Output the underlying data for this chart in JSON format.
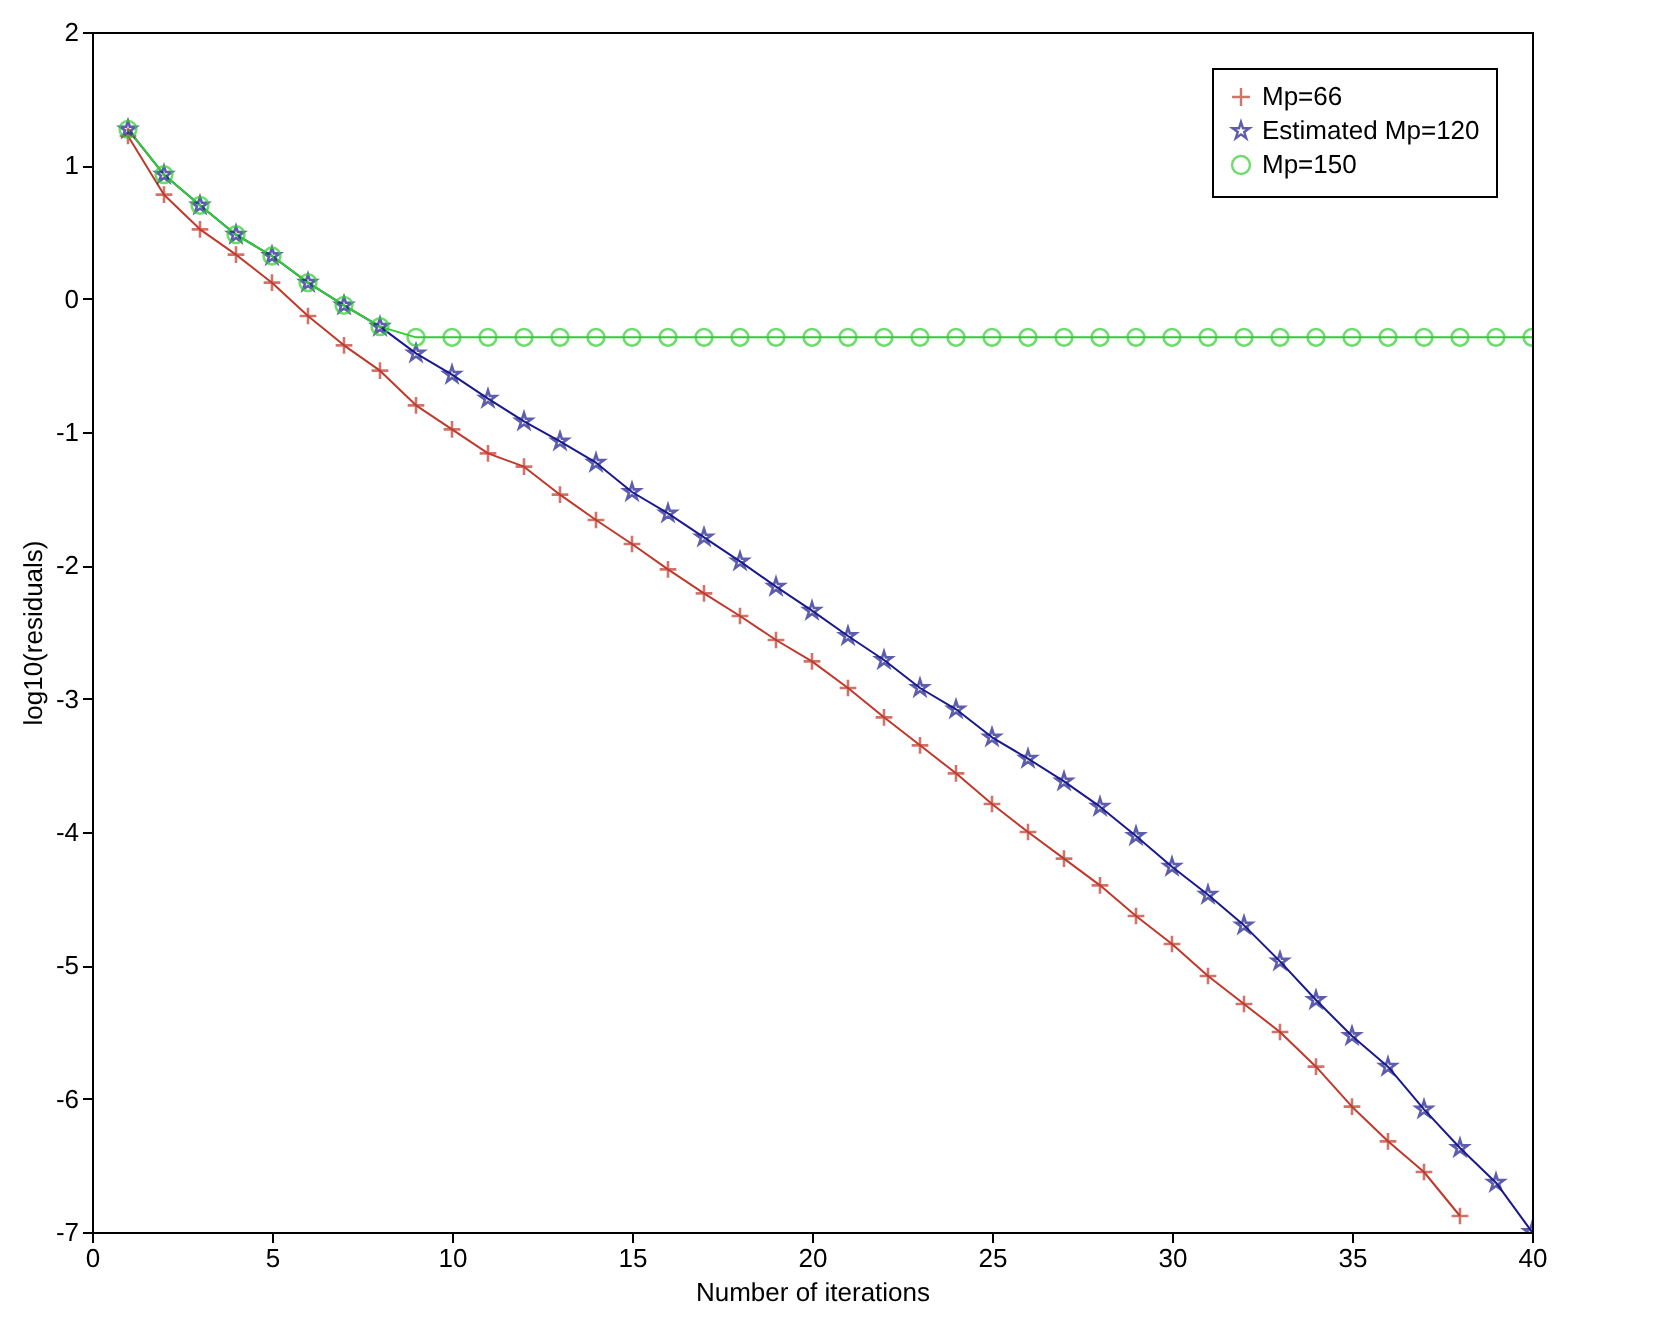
{
  "chart_data": {
    "type": "line",
    "xlabel": "Number of iterations",
    "ylabel": "log10(residuals)",
    "x": [
      1,
      2,
      3,
      4,
      5,
      6,
      7,
      8,
      9,
      10,
      11,
      12,
      13,
      14,
      15,
      16,
      17,
      18,
      19,
      20,
      21,
      22,
      23,
      24,
      25,
      26,
      27,
      28,
      29,
      30,
      31,
      32,
      33,
      34,
      35,
      36,
      37,
      38,
      39,
      40
    ],
    "xlim": [
      0,
      40
    ],
    "xticks": [
      0,
      5,
      10,
      15,
      20,
      25,
      30,
      35,
      40
    ],
    "ylim": [
      -7,
      2
    ],
    "yticks": [
      -7,
      -6,
      -5,
      -4,
      -3,
      -2,
      -1,
      0,
      1,
      2
    ],
    "grid": false,
    "legend": "top right",
    "line_style": "solid",
    "series": [
      {
        "name": "Mp=66",
        "color": "#c0392b",
        "marker": "cross",
        "values": [
          1.22,
          0.78,
          0.52,
          0.33,
          0.12,
          -0.13,
          -0.35,
          -0.54,
          -0.8,
          -0.98,
          -1.16,
          -1.26,
          -1.47,
          -1.66,
          -1.84,
          -2.03,
          -2.21,
          -2.38,
          -2.56,
          -2.72,
          -2.92,
          -3.14,
          -3.35,
          -3.56,
          -3.79,
          -4.0,
          -4.2,
          -4.4,
          -4.63,
          -4.84,
          -5.08,
          -5.29,
          -5.5,
          -5.76,
          -6.06,
          -6.32,
          -6.55,
          -6.88,
          null,
          null
        ]
      },
      {
        "name": "Estimated Mp=120",
        "color": "#1a1a8c",
        "marker": "star",
        "values": [
          1.27,
          0.93,
          0.7,
          0.48,
          0.32,
          0.12,
          -0.05,
          -0.21,
          -0.41,
          -0.57,
          -0.75,
          -0.92,
          -1.07,
          -1.23,
          -1.45,
          -1.61,
          -1.79,
          -1.97,
          -2.16,
          -2.34,
          -2.53,
          -2.71,
          -2.92,
          -3.08,
          -3.29,
          -3.45,
          -3.62,
          -3.81,
          -4.03,
          -4.26,
          -4.47,
          -4.7,
          -4.97,
          -5.26,
          -5.53,
          -5.76,
          -6.08,
          -6.37,
          -6.63,
          -7.0
        ]
      },
      {
        "name": "Mp=150",
        "color": "#33cc33",
        "marker": "circle",
        "values": [
          1.27,
          0.93,
          0.7,
          0.48,
          0.32,
          0.12,
          -0.05,
          -0.21,
          -0.29,
          -0.29,
          -0.29,
          -0.29,
          -0.29,
          -0.29,
          -0.29,
          -0.29,
          -0.29,
          -0.29,
          -0.29,
          -0.29,
          -0.29,
          -0.29,
          -0.29,
          -0.29,
          -0.29,
          -0.29,
          -0.29,
          -0.29,
          -0.29,
          -0.29,
          -0.29,
          -0.29,
          -0.29,
          -0.29,
          -0.29,
          -0.29,
          -0.29,
          -0.29,
          -0.29,
          -0.29
        ]
      }
    ]
  }
}
